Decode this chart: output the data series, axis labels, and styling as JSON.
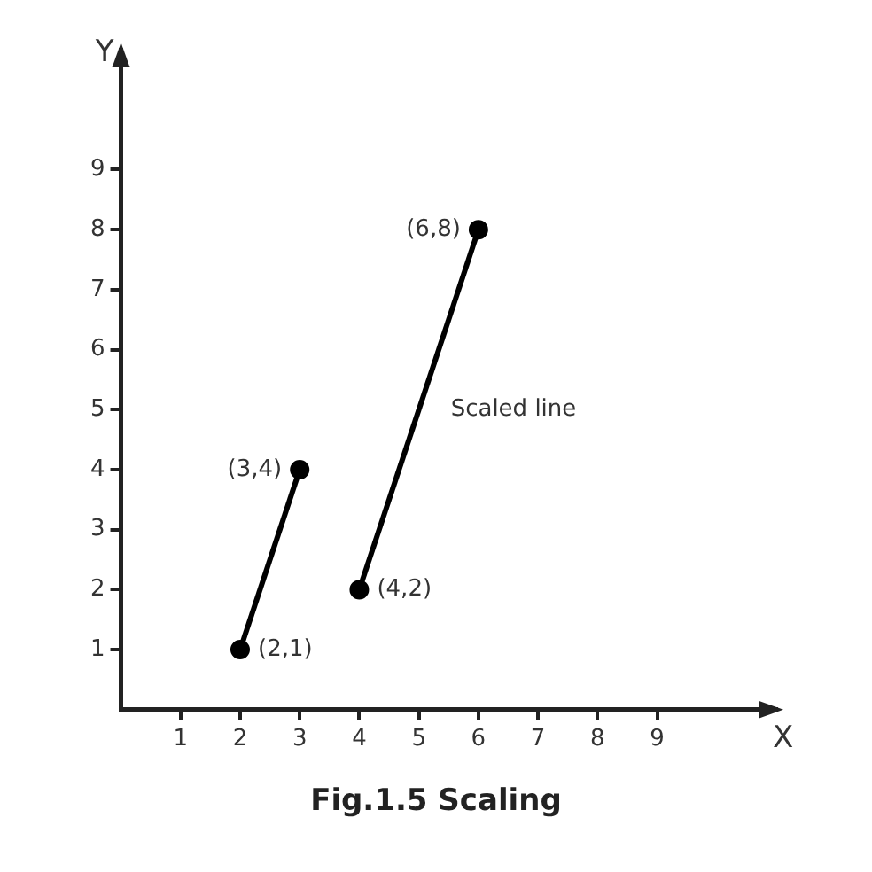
{
  "chart_data": {
    "type": "line",
    "title": "Fig.1.5 Scaling",
    "xlabel": "X",
    "ylabel": "Y",
    "marker": "circle",
    "grid": false,
    "legend": false,
    "xlim": [
      0,
      11
    ],
    "ylim": [
      0,
      11
    ],
    "xticks": [
      1,
      2,
      3,
      4,
      5,
      6,
      7,
      8,
      9
    ],
    "yticks": [
      1,
      2,
      3,
      4,
      5,
      6,
      7,
      8,
      9
    ],
    "series": [
      {
        "color": "#000000",
        "x": [
          2,
          3
        ],
        "values": [
          1,
          4
        ]
      },
      {
        "name": "Scaled line",
        "color": "#000000",
        "x": [
          4,
          6
        ],
        "values": [
          2,
          8
        ]
      }
    ],
    "annotations": [
      {
        "text": "(2,1)",
        "x": 2,
        "y": 1
      },
      {
        "text": "(3,4)",
        "x": 3,
        "y": 4
      },
      {
        "text": "(4,2)",
        "x": 4,
        "y": 2
      },
      {
        "text": "(6,8)",
        "x": 6,
        "y": 8
      }
    ]
  }
}
